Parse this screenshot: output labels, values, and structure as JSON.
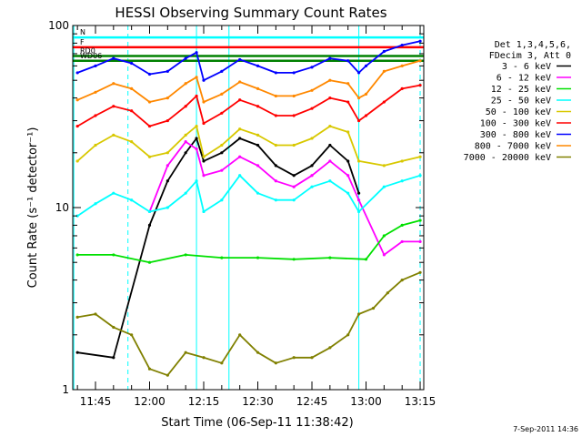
{
  "chart_data": {
    "type": "line",
    "title": "HESSI Observing Summary Count Rates",
    "xlabel": "Start Time (06-Sep-11 11:38:42)",
    "ylabel": "Count Rate (s⁻¹ detector⁻¹)",
    "x_scale": "time",
    "y_scale": "log",
    "xlim": [
      "11:38:42",
      "13:16:00"
    ],
    "ylim": [
      1,
      100
    ],
    "x_ticks": [
      "11:45",
      "12:00",
      "12:15",
      "12:30",
      "12:45",
      "13:00",
      "13:15"
    ],
    "y_ticks": [
      "1",
      "10",
      "100"
    ],
    "grid": false,
    "legend_title": [
      "Det 1,3,4,5,6,",
      "FDecim 3, Att 0"
    ],
    "legend_position": "right",
    "series": [
      {
        "name": "3 - 6 keV",
        "color": "#000000",
        "x": [
          "11:40",
          "11:50",
          "12:00",
          "12:05",
          "12:10",
          "12:13",
          "12:15",
          "12:20",
          "12:25",
          "12:30",
          "12:35",
          "12:40",
          "12:45",
          "12:50",
          "12:55",
          "12:58"
        ],
        "y": [
          1.6,
          1.5,
          8.0,
          14,
          20,
          24,
          18,
          20,
          24,
          22,
          17,
          15,
          17,
          22,
          18,
          12
        ]
      },
      {
        "name": "6 - 12 keV",
        "color": "#ff00ff",
        "x": [
          "12:00",
          "12:05",
          "12:10",
          "12:13",
          "12:15",
          "12:20",
          "12:25",
          "12:30",
          "12:35",
          "12:40",
          "12:45",
          "12:50",
          "12:55",
          "12:58",
          "13:05",
          "13:10",
          "13:15"
        ],
        "y": [
          9.5,
          17,
          23,
          21,
          15,
          16,
          19,
          17,
          14,
          13,
          15,
          18,
          15,
          11,
          5.5,
          6.5,
          6.5
        ]
      },
      {
        "name": "12 - 25 keV",
        "color": "#00e000",
        "x": [
          "11:40",
          "11:50",
          "12:00",
          "12:10",
          "12:20",
          "12:30",
          "12:40",
          "12:50",
          "13:00",
          "13:05",
          "13:10",
          "13:15"
        ],
        "y": [
          5.5,
          5.5,
          5.0,
          5.5,
          5.3,
          5.3,
          5.2,
          5.3,
          5.2,
          7.0,
          8.0,
          8.5
        ]
      },
      {
        "name": "25 - 50 keV",
        "color": "#00ffff",
        "x": [
          "11:40",
          "11:45",
          "11:50",
          "11:55",
          "12:00",
          "12:05",
          "12:10",
          "12:13",
          "12:15",
          "12:20",
          "12:25",
          "12:30",
          "12:35",
          "12:40",
          "12:45",
          "12:50",
          "12:55",
          "12:58",
          "13:05",
          "13:10",
          "13:15"
        ],
        "y": [
          9.0,
          10.5,
          12,
          11,
          9.5,
          10,
          12,
          14,
          9.5,
          11,
          15,
          12,
          11,
          11,
          13,
          14,
          12,
          9.5,
          13,
          14,
          15
        ]
      },
      {
        "name": "50 - 100 keV",
        "color": "#d8c800",
        "x": [
          "11:40",
          "11:45",
          "11:50",
          "11:55",
          "12:00",
          "12:05",
          "12:10",
          "12:13",
          "12:15",
          "12:20",
          "12:25",
          "12:30",
          "12:35",
          "12:40",
          "12:45",
          "12:50",
          "12:55",
          "12:58",
          "13:05",
          "13:10",
          "13:15"
        ],
        "y": [
          18,
          22,
          25,
          23,
          19,
          20,
          25,
          28,
          19,
          22,
          27,
          25,
          22,
          22,
          24,
          28,
          26,
          18,
          17,
          18,
          19
        ]
      },
      {
        "name": "100 - 300 keV",
        "color": "#ff0000",
        "x": [
          "11:40",
          "11:45",
          "11:50",
          "11:55",
          "12:00",
          "12:05",
          "12:10",
          "12:13",
          "12:15",
          "12:20",
          "12:25",
          "12:30",
          "12:35",
          "12:40",
          "12:45",
          "12:50",
          "12:55",
          "12:58",
          "13:00",
          "13:05",
          "13:10",
          "13:15"
        ],
        "y": [
          28,
          32,
          36,
          34,
          28,
          30,
          36,
          41,
          29,
          33,
          39,
          36,
          32,
          32,
          35,
          40,
          38,
          30,
          32,
          38,
          45,
          47
        ]
      },
      {
        "name": "300 - 800 keV",
        "color": "#0000ff",
        "x": [
          "11:40",
          "11:45",
          "11:50",
          "11:55",
          "12:00",
          "12:05",
          "12:10",
          "12:13",
          "12:15",
          "12:20",
          "12:25",
          "12:30",
          "12:35",
          "12:40",
          "12:45",
          "12:50",
          "12:55",
          "12:58",
          "13:00",
          "13:05",
          "13:10",
          "13:15"
        ],
        "y": [
          55,
          60,
          66,
          62,
          54,
          56,
          66,
          71,
          50,
          56,
          65,
          60,
          55,
          55,
          59,
          66,
          64,
          55,
          60,
          72,
          78,
          82
        ]
      },
      {
        "name": "800 - 7000 keV",
        "color": "#ff8800",
        "x": [
          "11:40",
          "11:45",
          "11:50",
          "11:55",
          "12:00",
          "12:05",
          "12:10",
          "12:13",
          "12:15",
          "12:20",
          "12:25",
          "12:30",
          "12:35",
          "12:40",
          "12:45",
          "12:50",
          "12:55",
          "12:58",
          "13:00",
          "13:05",
          "13:10",
          "13:15"
        ],
        "y": [
          39,
          43,
          48,
          45,
          38,
          40,
          48,
          52,
          38,
          42,
          49,
          45,
          41,
          41,
          44,
          50,
          48,
          40,
          42,
          56,
          60,
          64
        ]
      },
      {
        "name": "7000 - 20000 keV",
        "color": "#808000",
        "x": [
          "11:40",
          "11:45",
          "11:50",
          "11:55",
          "12:00",
          "12:05",
          "12:10",
          "12:15",
          "12:20",
          "12:25",
          "12:30",
          "12:35",
          "12:40",
          "12:45",
          "12:50",
          "12:55",
          "12:58",
          "13:02",
          "13:06",
          "13:10",
          "13:15"
        ],
        "y": [
          2.5,
          2.6,
          2.2,
          2.0,
          1.3,
          1.2,
          1.6,
          1.5,
          1.4,
          2.0,
          1.6,
          1.4,
          1.5,
          1.5,
          1.7,
          2.0,
          2.6,
          2.8,
          3.4,
          4.0,
          4.4
        ]
      }
    ],
    "flag_lines": [
      {
        "label": "N",
        "color": "#00ffff",
        "y": 86
      },
      {
        "label": "F",
        "color": "#ff0000",
        "y": 76
      },
      {
        "label": "RD0",
        "color": "#008000",
        "y": 68
      },
      {
        "label": "WD06",
        "color": "#008000",
        "y": 64
      }
    ],
    "vertical_markers": [
      {
        "color": "#00ffff",
        "style": "solid",
        "x": [
          "11:39",
          "12:13",
          "12:22",
          "12:58"
        ]
      },
      {
        "color": "#00ffff",
        "style": "dashed",
        "x": [
          "11:54",
          "13:15"
        ]
      }
    ]
  },
  "footer": {
    "date_stamp": "7-Sep-2011 14:36"
  }
}
